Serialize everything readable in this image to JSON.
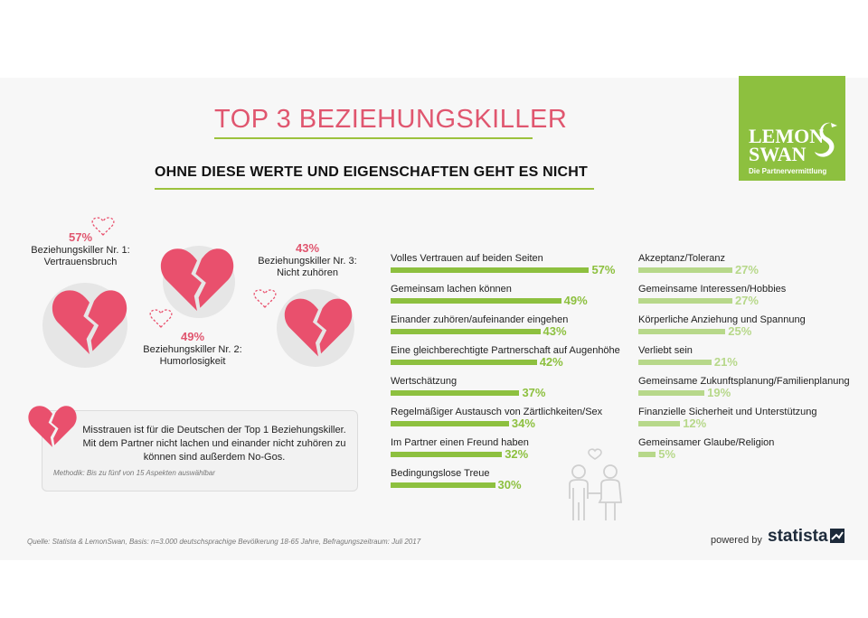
{
  "title": "TOP 3 BEZIEHUNGSKILLER",
  "subtitle": "OHNE DIESE WERTE UND EIGENSCHAFTEN GEHT ES NICHT",
  "logo": {
    "line1": "LEMON",
    "line2": "SWAN",
    "tagline": "Die Partnervermittlung",
    "color": "#8dc03f"
  },
  "killers": [
    {
      "pct": "57%",
      "label_line1": "Beziehungskiller Nr. 1:",
      "label_line2": "Vertrauensbruch"
    },
    {
      "pct": "49%",
      "label_line1": "Beziehungskiller Nr. 2:",
      "label_line2": "Humorlosigkeit"
    },
    {
      "pct": "43%",
      "label_line1": "Beziehungskiller Nr. 3:",
      "label_line2": "Nicht zuhören"
    }
  ],
  "note": {
    "text": "Misstrauen ist für die Deutschen der Top 1 Beziehungskiller. Mit dem Partner nicht lachen und einander nicht zuhören zu können sind außerdem No-Gos.",
    "method": "Methodik: Bis zu fünf von 15 Aspekten auswählbar"
  },
  "chart_data": {
    "type": "bar",
    "title": "OHNE DIESE WERTE UND EIGENSCHAFTEN GEHT ES NICHT",
    "xlabel": "",
    "ylabel": "",
    "unit": "%",
    "xlim": [
      0,
      100
    ],
    "columns": [
      {
        "color": "#8dc03f",
        "items": [
          {
            "label": "Volles Vertrauen auf beiden Seiten",
            "value": 57
          },
          {
            "label": "Gemeinsam lachen können",
            "value": 49
          },
          {
            "label": "Einander zuhören/aufeinander eingehen",
            "value": 43
          },
          {
            "label": "Eine gleichberechtigte Partnerschaft auf Augenhöhe",
            "value": 42
          },
          {
            "label": "Wertschätzung",
            "value": 37
          },
          {
            "label": "Regelmäßiger Austausch von Zärtlichkeiten/Sex",
            "value": 34
          },
          {
            "label": "Im Partner einen Freund haben",
            "value": 32
          },
          {
            "label": "Bedingungslose Treue",
            "value": 30
          }
        ]
      },
      {
        "color": "#b7d88a",
        "items": [
          {
            "label": "Akzeptanz/Toleranz",
            "value": 27
          },
          {
            "label": "Gemeinsame Interessen/Hobbies",
            "value": 27
          },
          {
            "label": "Körperliche Anziehung und Spannung",
            "value": 25
          },
          {
            "label": "Verliebt sein",
            "value": 21
          },
          {
            "label": "Gemeinsame Zukunftsplanung/Familienplanung",
            "value": 19
          },
          {
            "label": "Finanzielle Sicherheit und Unterstützung",
            "value": 12
          },
          {
            "label": "Gemeinsamer Glaube/Religion",
            "value": 5
          }
        ]
      }
    ]
  },
  "colors": {
    "accent": "#e0566f",
    "green": "#8dc03f",
    "light_green": "#b7d88a"
  },
  "icons": [
    "broken-heart-icon",
    "outline-heart-icon",
    "couple-icon",
    "swan-logo-icon",
    "statista-mark-icon"
  ],
  "footer": {
    "source": "Quelle: Statista & LemonSwan, Basis: n=3.000 deutschsprachige Bevölkerung 18-65 Jahre, Befragungszeitraum: Juli 2017",
    "powered": "powered by",
    "brand": "statista"
  }
}
